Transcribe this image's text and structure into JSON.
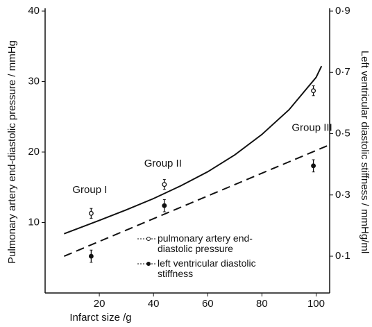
{
  "chart_data": {
    "type": "scatter",
    "x_label": "Infarct size /g",
    "y_label": "Pulmonary artery end-diastolic pressure / mmHg",
    "y2_label": "Left ventricular diastolic stiffness / mmHg/ml",
    "xlim": [
      0,
      105
    ],
    "xticks": [
      20,
      40,
      60,
      80,
      100
    ],
    "ylim": [
      0,
      40
    ],
    "yticks": [
      10,
      20,
      30,
      40
    ],
    "y2lim": [
      -0.02,
      0.9
    ],
    "y2ticks": [
      {
        "value": 0.1,
        "label": "0·1"
      },
      {
        "value": 0.3,
        "label": "0·3"
      },
      {
        "value": 0.5,
        "label": "0·5"
      },
      {
        "value": 0.7,
        "label": "0·7"
      },
      {
        "value": 0.9,
        "label": "0·9"
      }
    ],
    "color": "#111111",
    "series": [
      {
        "name": "pulmonary artery end-diastolic pressure",
        "marker": "open",
        "x": [
          17,
          44,
          99
        ],
        "values": [
          11.3,
          15.4,
          28.7
        ],
        "errors": [
          0.7,
          0.7,
          0.7
        ]
      },
      {
        "name": "left ventricular diastolic stiffness",
        "marker": "filled",
        "axis": "y2",
        "x": [
          17,
          44,
          99
        ],
        "values": [
          0.1,
          0.265,
          0.395
        ],
        "errors": [
          0.02,
          0.02,
          0.02
        ]
      }
    ],
    "fits": [
      {
        "style": "solid",
        "x": [
          7,
          20,
          30,
          40,
          50,
          60,
          70,
          80,
          90,
          100,
          102
        ],
        "values": [
          8.4,
          10.3,
          11.8,
          13.4,
          15.2,
          17.2,
          19.6,
          22.5,
          26.0,
          30.6,
          32.2
        ]
      },
      {
        "style": "dashed",
        "axis": "y2",
        "x": [
          7,
          104
        ],
        "values": [
          0.1,
          0.46
        ]
      }
    ],
    "annotations": [
      {
        "text": "Group I",
        "x": 17,
        "y": 14.6
      },
      {
        "text": "Group II",
        "x": 44,
        "y": 18.3
      },
      {
        "text": "Group III",
        "x": 99,
        "y": 23.4
      }
    ]
  }
}
